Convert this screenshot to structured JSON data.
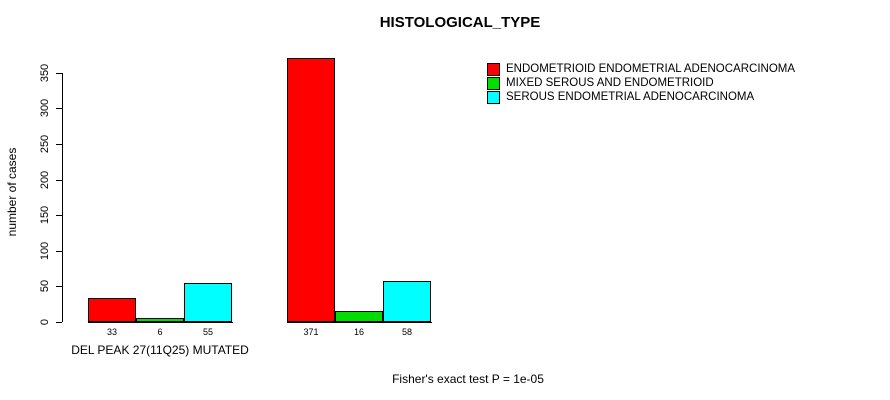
{
  "chart_data": {
    "type": "bar",
    "title": "HISTOLOGICAL_TYPE",
    "ylabel": "number of cases",
    "annotation": "Fisher's exact test P = 1e-05",
    "ylim": [
      0,
      372
    ],
    "yticks": [
      0,
      50,
      100,
      150,
      200,
      250,
      300,
      350
    ],
    "grid": false,
    "legend_position": "top-right",
    "categories": [
      "DEL PEAK 27(11Q25) MUTATED",
      ""
    ],
    "series": [
      {
        "name": "ENDOMETRIOID ENDOMETRIAL ADENOCARCINOMA",
        "color": "#FF0000",
        "values": [
          33,
          371
        ]
      },
      {
        "name": "MIXED SEROUS AND ENDOMETRIOID",
        "color": "#00DD00",
        "values": [
          6,
          16
        ]
      },
      {
        "name": "SEROUS ENDOMETRIAL ADENOCARCINOMA",
        "color": "#00FFFF",
        "values": [
          55,
          58
        ]
      }
    ],
    "bar_value_labels": [
      [
        "33",
        "6",
        "55"
      ],
      [
        "371",
        "16",
        "58"
      ]
    ]
  }
}
